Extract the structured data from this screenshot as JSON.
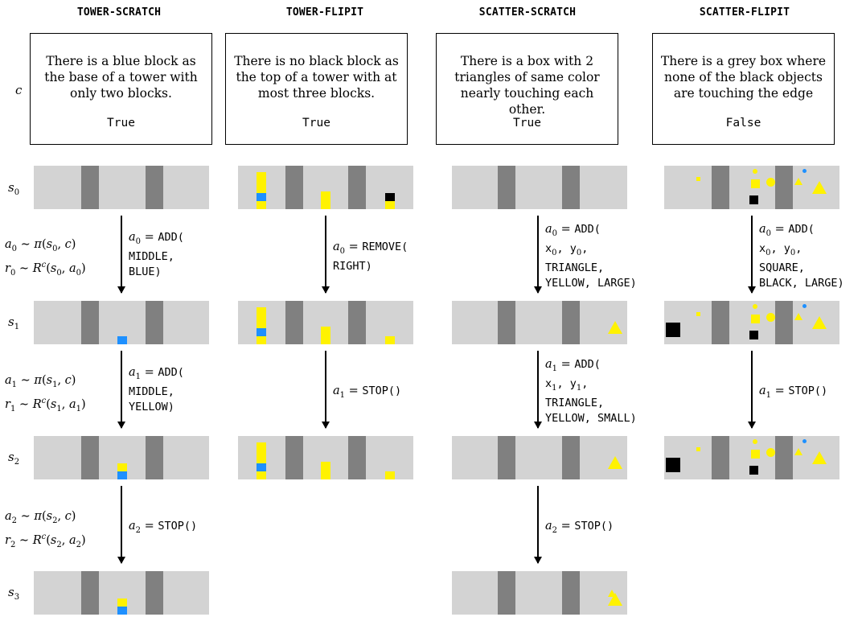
{
  "columns": [
    {
      "title": "TOWER-SCRATCH",
      "description": "There is a blue block as the base of a tower with only two blocks.",
      "value": "True"
    },
    {
      "title": "TOWER-FLIPIT",
      "description": "There is no black block as the top of a tower with at most three blocks.",
      "value": "True"
    },
    {
      "title": "SCATTER-SCRATCH",
      "description": "There is a box with 2 triangles of same color nearly touching each other.",
      "value": "True"
    },
    {
      "title": "SCATTER-FLIPIT",
      "description": "There is a grey box where none of the black objects are touching the edge",
      "value": "False"
    }
  ],
  "labels": {
    "c": "c",
    "s": "s",
    "s0": "0",
    "s1": "1",
    "s2": "2",
    "s3": "3"
  },
  "policy": [
    {
      "a_line": "a",
      "idx": "0",
      "pi": "∼ π(s",
      "r_line": "r",
      "R": "∼ R",
      "sup": "c",
      "args": "(s"
    },
    {
      "idx": "1"
    },
    {
      "idx": "2"
    }
  ],
  "actions": {
    "ts": {
      "a0": {
        "var": "a",
        "idx": "0",
        "eq": " = ",
        "fn": "ADD(",
        "l2": "MIDDLE,",
        "l3": "BLUE)"
      },
      "a1": {
        "var": "a",
        "idx": "1",
        "eq": " = ",
        "fn": "ADD(",
        "l2": "MIDDLE,",
        "l3": "YELLOW)"
      },
      "a2": {
        "var": "a",
        "idx": "2",
        "eq": " = ",
        "fn": "STOP()"
      }
    },
    "tf": {
      "a0": {
        "var": "a",
        "idx": "0",
        "eq": " = ",
        "fn": "REMOVE(",
        "l2": "RIGHT)"
      },
      "a1": {
        "var": "a",
        "idx": "1",
        "eq": " = ",
        "fn": "STOP()"
      }
    },
    "ss": {
      "a0": {
        "var": "a",
        "idx": "0",
        "eq": " = ",
        "fn": "ADD(",
        "l2a": "x",
        "l2ai": "0",
        "l2b": ", y",
        "l2bi": "0",
        "l2c": ",",
        "l3": "TRIANGLE,",
        "l4": "YELLOW, LARGE)"
      },
      "a1": {
        "var": "a",
        "idx": "1",
        "eq": " = ",
        "fn": "ADD(",
        "l2a": "x",
        "l2ai": "1",
        "l2b": ", y",
        "l2bi": "1",
        "l2c": ",",
        "l3": "TRIANGLE,",
        "l4": "YELLOW, SMALL)"
      },
      "a2": {
        "var": "a",
        "idx": "2",
        "eq": " = ",
        "fn": "STOP()"
      }
    },
    "sf": {
      "a0": {
        "var": "a",
        "idx": "0",
        "eq": " = ",
        "fn": "ADD(",
        "l2a": "x",
        "l2ai": "0",
        "l2b": ", y",
        "l2bi": "0",
        "l2c": ",",
        "l3": "SQUARE,",
        "l4": "BLACK, LARGE)"
      },
      "a1": {
        "var": "a",
        "idx": "1",
        "eq": " = ",
        "fn": "STOP()"
      }
    }
  },
  "colors": {
    "background": "#d3d3d3",
    "divider": "#808080",
    "blue": "#1e90ff",
    "yellow": "#fff200",
    "black": "#000000"
  }
}
